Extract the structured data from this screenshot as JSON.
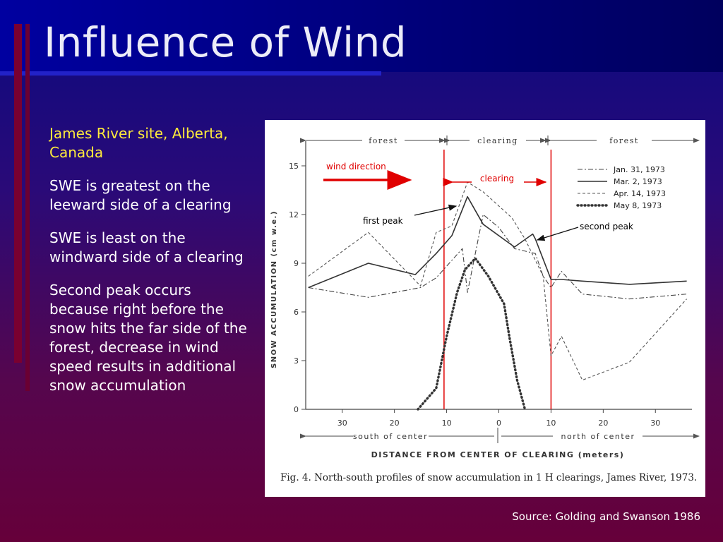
{
  "slide": {
    "title": "Influence of Wind",
    "bullets": [
      "James River site, Alberta, Canada",
      "SWE is greatest on the leeward side of a clearing",
      "SWE is least on the windward side of a clearing",
      "Second peak occurs because right before the snow hits the far side of the forest, decrease in wind speed results in additional snow accumulation"
    ],
    "source": "Source: Golding and Swanson 1986"
  },
  "colors": {
    "background_top": "#0a0a80",
    "background_bottom": "#66003a",
    "site_text": "#ffeb3b",
    "annotation_red": "#e00000"
  },
  "chart_data": {
    "type": "line",
    "caption": "Fig. 4.   North-south profiles of snow accumulation in 1 H clearings, James River, 1973.",
    "xlabel": "DISTANCE  FROM  CENTER  OF  CLEARING  (meters)",
    "ylabel": "SNOW  ACCUMULATION  (cm w.e.)",
    "xlim": [
      -37,
      37
    ],
    "ylim": [
      0,
      16
    ],
    "x_ticks": [
      -30,
      -20,
      -10,
      0,
      10,
      20,
      30
    ],
    "x_tick_labels": [
      "30",
      "20",
      "10",
      "0",
      "10",
      "20",
      "30"
    ],
    "y_ticks": [
      0,
      3,
      6,
      9,
      12,
      15
    ],
    "y_tick_labels": [
      "0",
      "3",
      "6",
      "9",
      "12",
      "15"
    ],
    "top_labels": [
      "forest",
      "clearing",
      "forest"
    ],
    "bottom_labels": [
      "south  of  center",
      "north  of  center"
    ],
    "zones": {
      "clearing_start": -10.5,
      "clearing_end": 10
    },
    "grid": false,
    "legend_position": "top-right",
    "series": [
      {
        "name": "Jan.  31,  1973",
        "style": "dashdot",
        "x": [
          -36.5,
          -25,
          -15,
          -12,
          -7,
          -6,
          -3,
          0,
          3,
          7,
          8.5,
          10,
          12,
          16,
          25,
          36
        ],
        "y": [
          7.5,
          6.9,
          7.5,
          8.1,
          9.9,
          7.2,
          12.0,
          11.2,
          9.9,
          9.6,
          8.2,
          7.5,
          8.5,
          7.1,
          6.8,
          7.1
        ]
      },
      {
        "name": "Mar.  2,  1973",
        "style": "solid",
        "x": [
          -36.5,
          -25,
          -16,
          -12,
          -9,
          -6,
          -3,
          3,
          6.5,
          7,
          10,
          12,
          16,
          25,
          36
        ],
        "y": [
          7.5,
          9.0,
          8.3,
          9.6,
          10.7,
          13.1,
          11.4,
          10.0,
          10.8,
          10.5,
          8.0,
          8.0,
          7.9,
          7.7,
          7.9
        ]
      },
      {
        "name": "Apr.  14,  1973",
        "style": "dashed",
        "x": [
          -36.5,
          -25,
          -15,
          -12,
          -9,
          -6,
          -3,
          2.5,
          5,
          8.5,
          10,
          12,
          16,
          25,
          36
        ],
        "y": [
          8.2,
          10.9,
          7.6,
          10.9,
          11.3,
          14.0,
          13.4,
          11.8,
          10.5,
          8.2,
          3.3,
          4.5,
          1.8,
          2.9,
          6.8
        ]
      },
      {
        "name": "May  8,  1973",
        "style": "dotted",
        "x": [
          -15.5,
          -12,
          -10,
          -8,
          -6.5,
          -4.5,
          -2,
          1,
          2,
          3.5,
          5
        ],
        "y": [
          0.0,
          1.3,
          4.5,
          7.2,
          8.6,
          9.3,
          8.2,
          6.5,
          4.5,
          1.8,
          0.0
        ]
      }
    ],
    "annotations": {
      "wind_direction": "wind direction",
      "clearing": "clearing",
      "first_peak": "first peak",
      "second_peak": "second peak"
    }
  }
}
